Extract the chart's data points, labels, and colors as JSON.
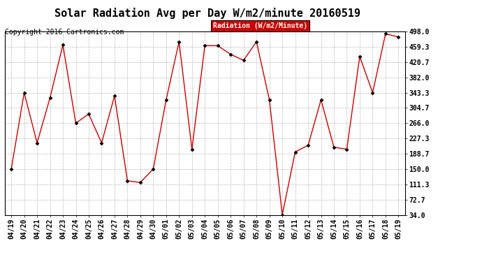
{
  "title": "Solar Radiation Avg per Day W/m2/minute 20160519",
  "copyright": "Copyright 2016 Cartronics.com",
  "legend_label": "Radiation (W/m2/Minute)",
  "dates": [
    "04/19",
    "04/20",
    "04/21",
    "04/22",
    "04/23",
    "04/24",
    "04/25",
    "04/26",
    "04/27",
    "04/28",
    "04/29",
    "04/30",
    "05/01",
    "05/02",
    "05/03",
    "05/04",
    "05/05",
    "05/06",
    "05/07",
    "05/08",
    "05/09",
    "05/10",
    "05/11",
    "05/12",
    "05/13",
    "05/14",
    "05/15",
    "05/16",
    "05/17",
    "05/18",
    "05/19"
  ],
  "values": [
    150,
    343,
    216,
    330,
    464,
    266,
    289,
    216,
    335,
    120,
    116,
    150,
    325,
    472,
    200,
    462,
    462,
    440,
    425,
    472,
    325,
    34,
    193,
    210,
    325,
    205,
    200,
    435,
    343,
    492,
    484
  ],
  "line_color": "#cc0000",
  "marker_color": "#000000",
  "background_color": "#ffffff",
  "grid_color": "#aaaaaa",
  "legend_bg": "#cc0000",
  "legend_text_color": "#ffffff",
  "ylim": [
    34.0,
    498.0
  ],
  "yticks": [
    34.0,
    72.7,
    111.3,
    150.0,
    188.7,
    227.3,
    266.0,
    304.7,
    343.3,
    382.0,
    420.7,
    459.3,
    498.0
  ],
  "title_fontsize": 11,
  "tick_fontsize": 7,
  "copyright_fontsize": 7,
  "legend_fontsize": 7
}
